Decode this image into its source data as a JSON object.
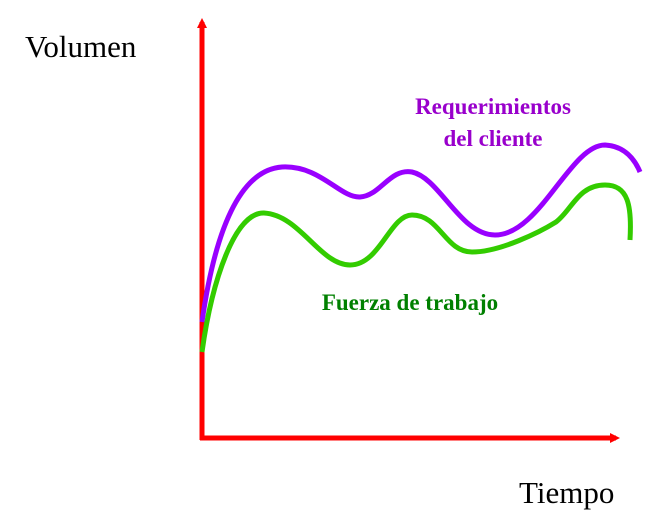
{
  "axes": {
    "y_label": "Volumen",
    "x_label": "Tiempo"
  },
  "curves": [
    {
      "label_lines": [
        "Requerimientos",
        "del cliente"
      ]
    },
    {
      "label_lines": [
        "Fuerza de trabajo"
      ]
    }
  ]
}
